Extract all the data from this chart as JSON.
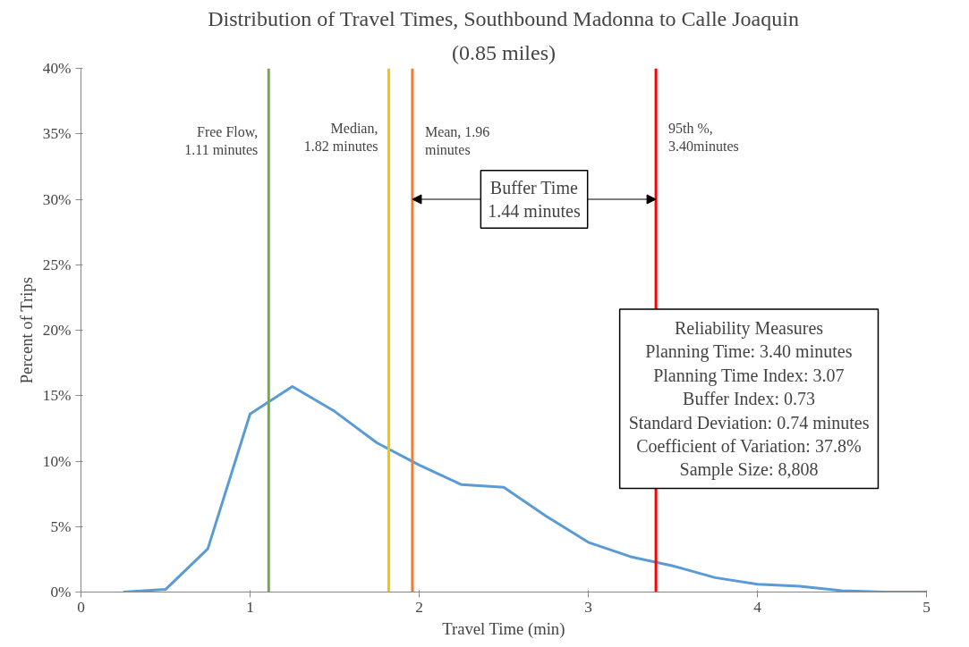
{
  "chart_data": {
    "type": "line",
    "title": "Distribution of Travel Times, Southbound Madonna to Calle Joaquin",
    "subtitle": "(0.85 miles)",
    "xlabel": "Travel Time (min)",
    "ylabel": "Percent of Trips",
    "x": [
      0.25,
      0.5,
      0.75,
      1,
      1.25,
      1.5,
      1.75,
      2,
      2.25,
      2.5,
      2.75,
      3,
      3.25,
      3.5,
      3.75,
      4,
      4.25,
      4.5,
      4.75,
      5
    ],
    "series": [
      {
        "color": "#5b9bd5",
        "values": [
          0,
          0.2,
          3.3,
          13.6,
          15.7,
          13.8,
          11.4,
          9.7,
          8.2,
          8.0,
          5.8,
          3.8,
          2.7,
          2.0,
          1.1,
          0.6,
          0.45,
          0.1,
          0,
          0
        ]
      }
    ],
    "xlim": [
      0,
      5
    ],
    "xticks": [
      0,
      1,
      2,
      3,
      4,
      5
    ],
    "ylim": [
      0,
      40
    ],
    "yticks": [
      {
        "value": 0,
        "label": "0%"
      },
      {
        "value": 5,
        "label": "5%"
      },
      {
        "value": 10,
        "label": "10%"
      },
      {
        "value": 15,
        "label": "15%"
      },
      {
        "value": 20,
        "label": "20%"
      },
      {
        "value": 25,
        "label": "25%"
      },
      {
        "value": 30,
        "label": "30%"
      },
      {
        "value": 35,
        "label": "35%"
      },
      {
        "value": 40,
        "label": "40%"
      }
    ],
    "ref_lines": [
      {
        "axis": "x",
        "value": 1.11,
        "color": "#70ad47"
      },
      {
        "axis": "x",
        "value": 1.82,
        "color": "#ffc000"
      },
      {
        "axis": "x",
        "value": 1.96,
        "color": "#ed7d31"
      },
      {
        "axis": "x",
        "value": 3.4,
        "color": "#ff0000"
      }
    ],
    "annotations": [
      {
        "text": "Free Flow,\n1.11 minutes",
        "x": 1.11,
        "y": 36
      },
      {
        "text": "Median,\n1.82 minutes",
        "x": 1.82,
        "y": 36
      },
      {
        "text": "Mean, 1.96\nminutes",
        "x": 1.96,
        "y": 36
      },
      {
        "text": "95th %,\n3.40minutes",
        "x": 3.4,
        "y": 36
      },
      {
        "text": "Buffer Time\n1.44 minutes",
        "x": 3.4,
        "y": 30
      },
      "Reliability Measures\nPlanning Time: 3.40 minutes\nPlanning Time Index: 3.07\nBuffer Index: 0.73\nStandard Deviation: 0.74 minutes\nCoefficient of Variation: 37.8%\nSample Size: 8,808"
    ],
    "grid": false,
    "marker": "none",
    "line_style": "solid"
  }
}
